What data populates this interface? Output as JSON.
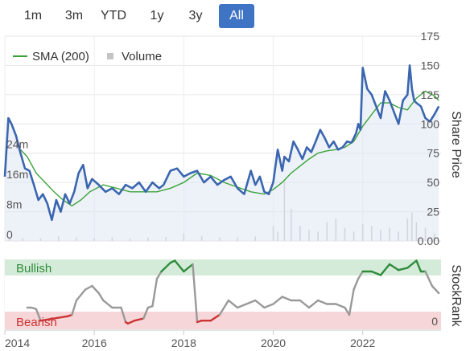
{
  "range_buttons": [
    {
      "label": "1m",
      "active": false
    },
    {
      "label": "3m",
      "active": false
    },
    {
      "label": "YTD",
      "active": false
    },
    {
      "label": "1y",
      "active": false
    },
    {
      "label": "3y",
      "active": false
    },
    {
      "label": "All",
      "active": true
    }
  ],
  "legend": {
    "sma_label": "SMA (200)",
    "volume_label": "Volume"
  },
  "colors": {
    "price": "#3a66b0",
    "sma": "#3aa33a",
    "volume": "#c4c4c4",
    "bullish_band": "#d5ebd9",
    "bearish_band": "#f6d6d8",
    "stockrank": "#999999",
    "stockrank_bull": "#2e8b3a",
    "stockrank_bear": "#cc3333",
    "active_button": "#3f73c4"
  },
  "chart_data": [
    {
      "type": "line",
      "ylabel": "Share Price",
      "ylim": [
        0,
        175
      ],
      "price_ticks": [
        "175",
        "150",
        "125",
        "100",
        "75",
        "50",
        "25",
        "0.00"
      ],
      "volume_ticks": [
        "24m",
        "16m",
        "8m",
        "0"
      ],
      "volume_ylim": [
        0,
        32
      ],
      "x_tick_labels": [
        "2014",
        "2016",
        "2018",
        "2020",
        "2022"
      ],
      "x_range": [
        2014.0,
        2023.75
      ],
      "grid": true,
      "legend_position": "top-left",
      "series": [
        {
          "name": "",
          "role": "price",
          "x": [
            2014.0,
            2014.08,
            2014.15,
            2014.25,
            2014.35,
            2014.45,
            2014.55,
            2014.65,
            2014.75,
            2014.85,
            2014.95,
            2015.05,
            2015.15,
            2015.25,
            2015.35,
            2015.45,
            2015.55,
            2015.65,
            2015.75,
            2015.85,
            2015.95,
            2016.1,
            2016.25,
            2016.4,
            2016.55,
            2016.7,
            2016.85,
            2017.0,
            2017.15,
            2017.3,
            2017.45,
            2017.55,
            2017.7,
            2017.85,
            2018.0,
            2018.15,
            2018.3,
            2018.45,
            2018.6,
            2018.75,
            2018.9,
            2019.05,
            2019.2,
            2019.35,
            2019.5,
            2019.6,
            2019.7,
            2019.8,
            2019.9,
            2020.0,
            2020.1,
            2020.2,
            2020.25,
            2020.35,
            2020.45,
            2020.55,
            2020.65,
            2020.75,
            2020.85,
            2020.95,
            2021.05,
            2021.15,
            2021.25,
            2021.35,
            2021.45,
            2021.55,
            2021.65,
            2021.75,
            2021.85,
            2021.9,
            2021.95,
            2022.0,
            2022.1,
            2022.2,
            2022.3,
            2022.4,
            2022.5,
            2022.6,
            2022.7,
            2022.8,
            2022.9,
            2023.0,
            2023.05,
            2023.1,
            2023.15,
            2023.2,
            2023.3,
            2023.4,
            2023.5,
            2023.6,
            2023.7
          ],
          "y": [
            55,
            105,
            100,
            90,
            75,
            62,
            60,
            48,
            35,
            40,
            32,
            18,
            35,
            25,
            40,
            32,
            42,
            58,
            65,
            45,
            53,
            48,
            42,
            45,
            40,
            48,
            45,
            50,
            42,
            50,
            45,
            48,
            60,
            62,
            55,
            58,
            60,
            50,
            55,
            48,
            52,
            55,
            45,
            40,
            60,
            48,
            55,
            42,
            40,
            50,
            78,
            60,
            72,
            68,
            85,
            78,
            70,
            80,
            76,
            85,
            95,
            88,
            80,
            85,
            78,
            80,
            85,
            84,
            92,
            100,
            95,
            148,
            130,
            125,
            115,
            105,
            128,
            120,
            110,
            100,
            120,
            125,
            150,
            130,
            120,
            118,
            115,
            105,
            102,
            108,
            115
          ]
        },
        {
          "name": "SMA (200)",
          "role": "sma",
          "x": [
            2014.35,
            2014.5,
            2014.7,
            2014.9,
            2015.1,
            2015.3,
            2015.5,
            2015.7,
            2015.9,
            2016.2,
            2016.5,
            2016.8,
            2017.1,
            2017.4,
            2017.7,
            2018.0,
            2018.3,
            2018.6,
            2018.9,
            2019.2,
            2019.5,
            2019.8,
            2020.0,
            2020.2,
            2020.4,
            2020.6,
            2020.8,
            2021.0,
            2021.2,
            2021.4,
            2021.6,
            2021.8,
            2022.0,
            2022.2,
            2022.4,
            2022.6,
            2022.8,
            2023.0,
            2023.2,
            2023.4,
            2023.6,
            2023.7
          ],
          "y": [
            78,
            72,
            58,
            50,
            42,
            35,
            30,
            35,
            42,
            48,
            45,
            42,
            42,
            42,
            45,
            50,
            58,
            56,
            50,
            46,
            42,
            40,
            44,
            50,
            58,
            64,
            70,
            75,
            77,
            78,
            80,
            85,
            98,
            108,
            118,
            118,
            114,
            112,
            122,
            128,
            124,
            120
          ]
        }
      ],
      "volume": {
        "x": [
          2014.1,
          2014.4,
          2014.8,
          2015.2,
          2015.6,
          2016.0,
          2016.4,
          2016.8,
          2017.2,
          2017.6,
          2018.0,
          2018.4,
          2018.8,
          2019.2,
          2019.6,
          2020.0,
          2020.1,
          2020.25,
          2020.4,
          2020.6,
          2020.8,
          2021.0,
          2021.2,
          2021.4,
          2021.6,
          2021.8,
          2022.0,
          2022.2,
          2022.4,
          2022.6,
          2022.8,
          2023.0,
          2023.1,
          2023.2,
          2023.4,
          2023.6
        ],
        "y": [
          1.0,
          0.8,
          0.7,
          1.2,
          0.9,
          0.8,
          1.0,
          0.6,
          0.9,
          1.1,
          2.0,
          1.3,
          1.0,
          0.9,
          1.2,
          4.0,
          2.5,
          16.0,
          8.5,
          4.0,
          3.0,
          2.5,
          5.0,
          6.0,
          3.5,
          2.5,
          4.5,
          4.0,
          3.0,
          3.5,
          2.5,
          6.0,
          7.5,
          5.0,
          3.5,
          2.0
        ]
      }
    },
    {
      "type": "line",
      "ylabel": "StockRank",
      "ylim": [
        0,
        100
      ],
      "band_labels": {
        "bullish": "Bullish",
        "bearish": "Bearish"
      },
      "right_tick": "0",
      "series": [
        {
          "name": "",
          "role": "stockrank",
          "x": [
            2014.5,
            2014.6,
            2014.7,
            2014.8,
            2015.0,
            2015.2,
            2015.4,
            2015.5,
            2015.6,
            2015.8,
            2015.95,
            2016.1,
            2016.2,
            2016.4,
            2016.6,
            2016.7,
            2016.75,
            2016.9,
            2017.1,
            2017.2,
            2017.3,
            2017.4,
            2017.5,
            2017.7,
            2017.8,
            2018.0,
            2018.2,
            2018.3,
            2018.4,
            2018.6,
            2018.8,
            2019.0,
            2019.2,
            2019.4,
            2019.6,
            2019.8,
            2020.0,
            2020.2,
            2020.4,
            2020.6,
            2020.8,
            2021.0,
            2021.2,
            2021.4,
            2021.6,
            2021.7,
            2021.8,
            2021.9,
            2022.0,
            2022.2,
            2022.4,
            2022.6,
            2022.8,
            2023.0,
            2023.2,
            2023.3,
            2023.4,
            2023.55,
            2023.7
          ],
          "y": [
            30,
            30,
            28,
            12,
            14,
            16,
            18,
            20,
            40,
            55,
            60,
            50,
            40,
            30,
            30,
            10,
            8,
            12,
            15,
            30,
            32,
            70,
            80,
            92,
            95,
            80,
            90,
            10,
            12,
            12,
            20,
            40,
            30,
            35,
            40,
            30,
            35,
            45,
            40,
            40,
            30,
            40,
            35,
            35,
            30,
            20,
            55,
            70,
            80,
            80,
            75,
            90,
            82,
            85,
            95,
            80,
            80,
            60,
            50
          ]
        }
      ]
    }
  ]
}
